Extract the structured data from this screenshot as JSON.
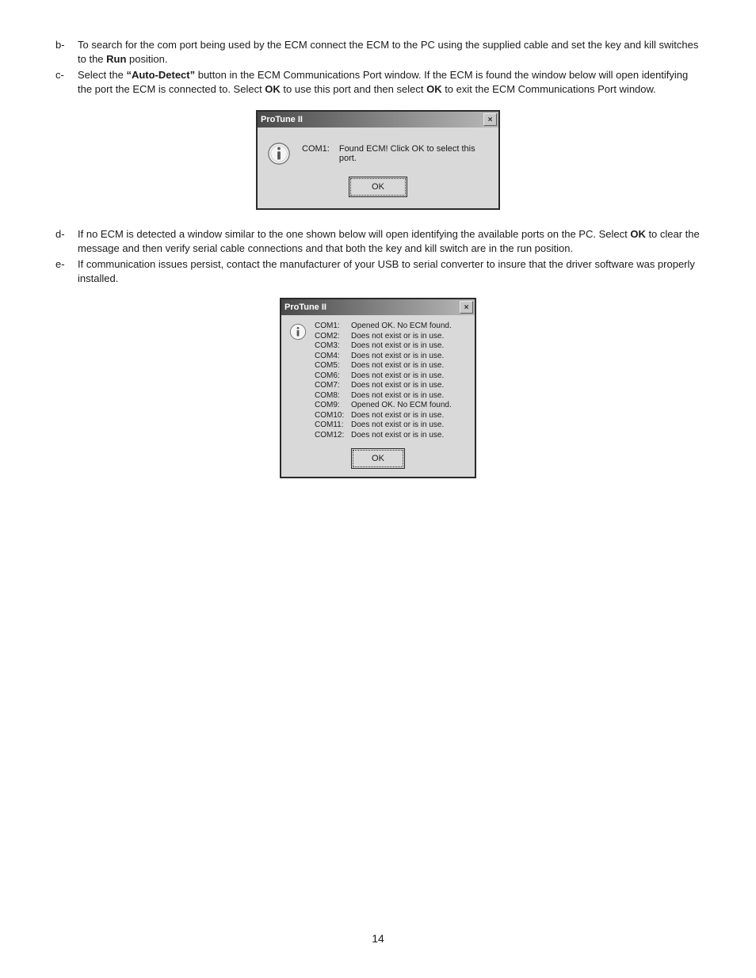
{
  "bullets": {
    "b": {
      "marker": "b-",
      "pre": "To search for the com port being used by the ECM connect the ECM to the PC using the supplied cable and set the key and kill switches to the ",
      "bold1": "Run",
      "post": " position."
    },
    "c": {
      "marker": "c-",
      "pre": "Select the ",
      "bold1": "“Auto-Detect”",
      "mid1": " button in the ECM Communications Port window. If the ECM is found the window below will open identifying the port the ECM is connected to. Select ",
      "bold2": "OK",
      "mid2": " to use this port and then select ",
      "bold3": "OK",
      "post": " to exit the ECM Communications Port window."
    },
    "d": {
      "marker": "d-",
      "pre": "If no ECM is detected a window similar to the one shown below will open identifying the available ports on the PC. Select ",
      "bold1": "OK",
      "post": " to clear the message and then verify serial cable connections and that both the key and kill switch are in the run position."
    },
    "e": {
      "marker": "e-",
      "text": "If communication issues persist, contact the manufacturer of your USB to serial converter to insure that the driver software was properly installed."
    }
  },
  "dialog1": {
    "title": "ProTune II",
    "close": "×",
    "port": "COM1:",
    "message": "Found ECM! Click OK to select this port.",
    "ok": "OK"
  },
  "dialog2": {
    "title": "ProTune II",
    "close": "×",
    "rows": [
      {
        "port": "COM1:",
        "status": "Opened OK. No ECM found."
      },
      {
        "port": "COM2:",
        "status": "Does not exist or is in use."
      },
      {
        "port": "COM3:",
        "status": "Does not exist or is in use."
      },
      {
        "port": "COM4:",
        "status": "Does not exist or is in use."
      },
      {
        "port": "COM5:",
        "status": "Does not exist or is in use."
      },
      {
        "port": "COM6:",
        "status": "Does not exist or is in use."
      },
      {
        "port": "COM7:",
        "status": "Does not exist or is in use."
      },
      {
        "port": "COM8:",
        "status": "Does not exist or is in use."
      },
      {
        "port": "COM9:",
        "status": "Opened OK. No ECM found."
      },
      {
        "port": "COM10:",
        "status": "Does not exist or is in use."
      },
      {
        "port": "COM11:",
        "status": "Does not exist or is in use."
      },
      {
        "port": "COM12:",
        "status": "Does not exist or is in use."
      }
    ],
    "ok": "OK"
  },
  "page_number": "14"
}
